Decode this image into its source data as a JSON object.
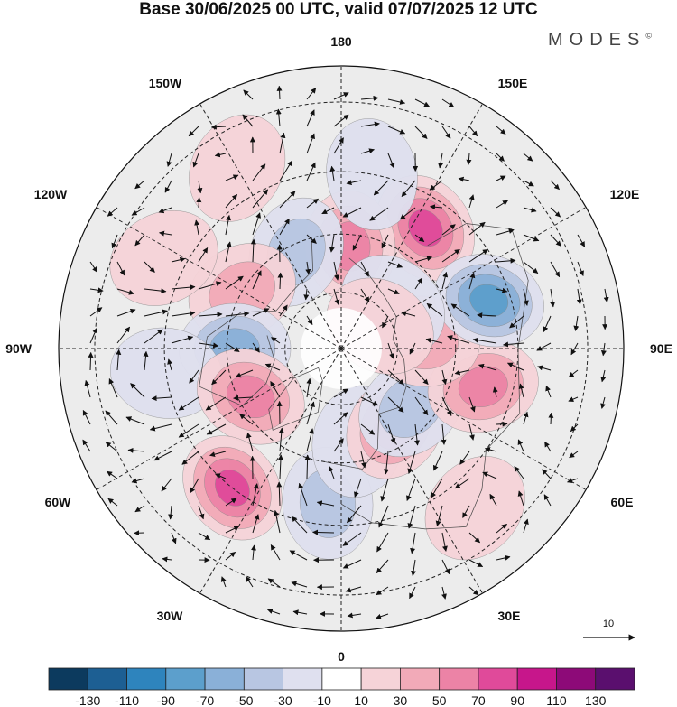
{
  "title": "Base 30/06/2025 00 UTC, valid 07/07/2025 12 UTC",
  "brand": {
    "name": "MODES",
    "mark": "©"
  },
  "longitude_labels": {
    "north": "180",
    "south": "0",
    "east": "90E",
    "west": "90W",
    "ne_150": "150E",
    "ne_120": "120E",
    "se_60": "60E",
    "se_30": "30E",
    "nw_150": "150W",
    "nw_120": "120W",
    "sw_60": "60W",
    "sw_30": "30W"
  },
  "reference_vector_label": "10",
  "colorbar": {
    "tick_labels": [
      "-130",
      "-110",
      "-90",
      "-70",
      "-50",
      "-30",
      "-10",
      "10",
      "30",
      "50",
      "70",
      "90",
      "110",
      "130"
    ],
    "colors": [
      "#0c3a5e",
      "#1d5f93",
      "#2e84bd",
      "#5c9fcc",
      "#8ab0d8",
      "#b8c6e2",
      "#dfe0ef",
      "#ffffff",
      "#f6d3d8",
      "#f2aab8",
      "#ec83a6",
      "#e04a9a",
      "#c7168b",
      "#8d0a78",
      "#5a0f6e"
    ]
  },
  "map": {
    "projection": "north-polar-stereographic",
    "anomaly_blobs": [
      {
        "lon": 145,
        "lat": 52,
        "value": 85
      },
      {
        "lon": 175,
        "lat": 63,
        "value": 75
      },
      {
        "lon": 170,
        "lat": 45,
        "value": -35
      },
      {
        "lon": -150,
        "lat": 38,
        "value": 22
      },
      {
        "lon": -155,
        "lat": 62,
        "value": -55
      },
      {
        "lon": -120,
        "lat": 60,
        "value": 55
      },
      {
        "lon": -117,
        "lat": 40,
        "value": 35
      },
      {
        "lon": -90,
        "lat": 62,
        "value": -65
      },
      {
        "lon": -82,
        "lat": 45,
        "value": -30
      },
      {
        "lon": -62,
        "lat": 63,
        "value": 65
      },
      {
        "lon": -38,
        "lat": 45,
        "value": 85
      },
      {
        "lon": -5,
        "lat": 50,
        "value": -45
      },
      {
        "lon": 10,
        "lat": 65,
        "value": -35
      },
      {
        "lon": 35,
        "lat": 65,
        "value": 75
      },
      {
        "lon": 50,
        "lat": 66,
        "value": -55
      },
      {
        "lon": 75,
        "lat": 52,
        "value": 65
      },
      {
        "lon": 95,
        "lat": 68,
        "value": 55
      },
      {
        "lon": 108,
        "lat": 50,
        "value": -85
      },
      {
        "lon": 130,
        "lat": 72,
        "value": -35
      },
      {
        "lon": 120,
        "lat": 78,
        "value": 30
      },
      {
        "lon": 40,
        "lat": 38,
        "value": 25
      }
    ]
  }
}
